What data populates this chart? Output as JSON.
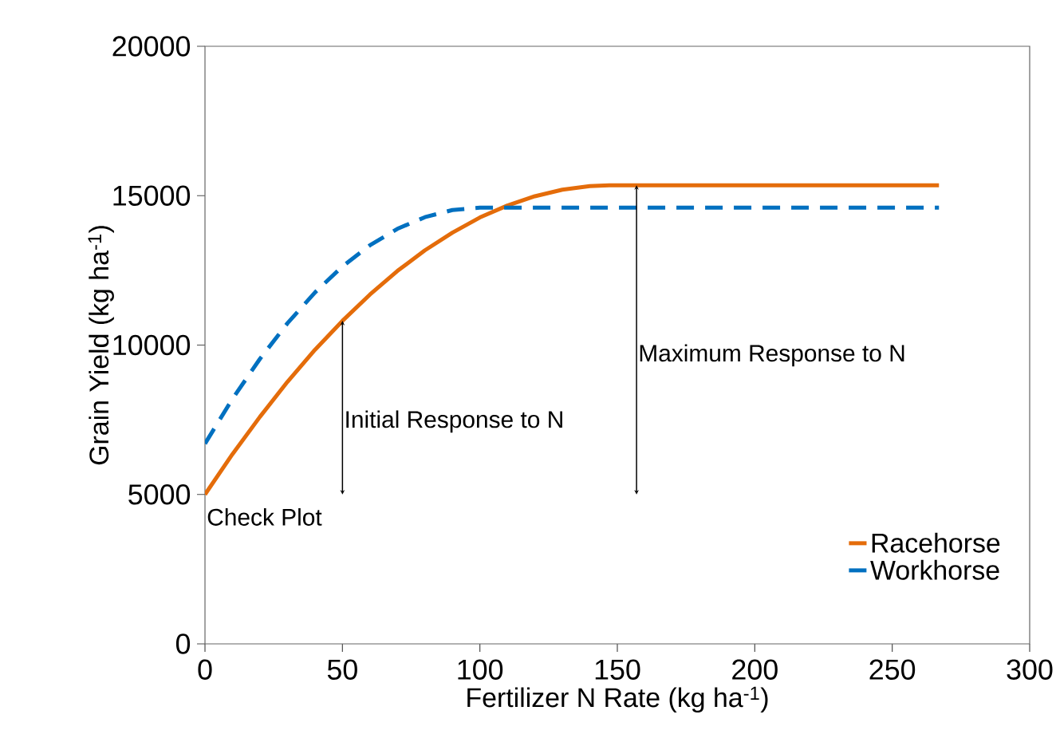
{
  "chart_data": {
    "type": "line",
    "xlabel": "Fertilizer  N Rate (kg ha$^{-1}$)",
    "ylabel": "Grain Yield (kg ha$^{-1}$)",
    "xlim": [
      0,
      300
    ],
    "ylim": [
      0,
      20000
    ],
    "xticks": [
      0,
      50,
      100,
      150,
      200,
      250,
      300
    ],
    "yticks": [
      0,
      5000,
      10000,
      15000,
      20000
    ],
    "grid": false,
    "legend": "bottom right",
    "marker": "none",
    "series": [
      {
        "name": "Racehorse",
        "color": "#e46c0a",
        "line_style": "solid",
        "x": [
          0,
          10,
          20,
          30,
          40,
          50,
          60,
          70,
          80,
          90,
          100,
          110,
          120,
          130,
          140,
          148,
          267
        ],
        "values": [
          5000,
          6350,
          7600,
          8770,
          9840,
          10810,
          11690,
          12480,
          13170,
          13760,
          14270,
          14670,
          14980,
          15200,
          15320,
          15350,
          15350
        ]
      },
      {
        "name": "Workhorse",
        "color": "#0070c0",
        "line_style": "dashed",
        "x": [
          0,
          10,
          20,
          30,
          40,
          50,
          60,
          70,
          80,
          90,
          100,
          267
        ],
        "values": [
          6700,
          8200,
          9540,
          10730,
          11760,
          12630,
          13340,
          13890,
          14280,
          14520,
          14600,
          14600
        ]
      }
    ],
    "annotations": [
      {
        "text": "Check Plot",
        "x": 0,
        "y": 5000
      },
      "Initial Response to N",
      "Maximum Response to N"
    ]
  }
}
